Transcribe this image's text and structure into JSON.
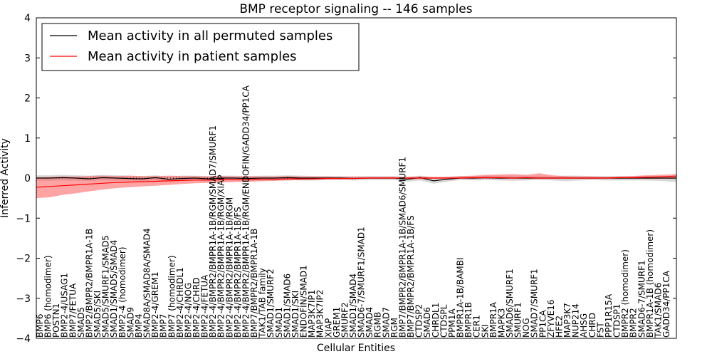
{
  "chart_data": {
    "type": "line",
    "title": "BMP receptor signaling -- 146 samples",
    "xlabel": "Cellular Entities",
    "ylabel": "Inferred Activity",
    "ylim": [
      -4,
      4
    ],
    "yticks": [
      -4,
      -3,
      -2,
      -1,
      0,
      1,
      2,
      3,
      4
    ],
    "xlim": [
      0,
      145
    ],
    "legend_position": "top-left",
    "colors": {
      "permuted_line": "#000000",
      "permuted_band": "#c8c8c8",
      "patient_line": "#ff0000",
      "patient_band": "#ff5a5a",
      "zero_line": "#000000"
    },
    "labels": [
      "BMP6",
      "BMP6 (homodimer)",
      "POSTN1",
      "BMP2-4/USAG1",
      "BMP7/FETUA",
      "SMAD5",
      "BMP2/BMPR2/BMPR1A-1B",
      "SMAD5/SKI",
      "SMAD5/SMURF1/SMAD5",
      "SMAD1/SMAD5/SMAD4",
      "BMP2-4 (homodimer)",
      "SMAD9",
      "BMP4",
      "SMAD8A/SMAD8A/SMAD4",
      "BMP2-4/GREM1",
      "BMP7",
      "BMP7 (homodimer)",
      "BMP2-4/CHRDL1",
      "BMP2-4/NOG",
      "BMP2-4/CHRD",
      "BMP2-4/FETUA",
      "BMP2-4/BMPR2/BMPR1A-1B/RGM/SMAD7/SMURF1",
      "BMP2-4/BMPR2/BMPR1A-1B/RGM/XIAP",
      "BMP2-4/BMPR2/BMPR1A-1B/RGM",
      "BMP2-4/BMPR2/BMPR1A-1B/FS",
      "BMP2-4/BMPR2/BMPR1A-1B/RGM/ENDOFIN/GADD34/PP1CA",
      "BMP7/BMPR2/BMPR1A-1B",
      "TAK1/TAB family",
      "SMAD1/SMURF2",
      "SMAD1",
      "SMAD1/SMAD6",
      "SMAD1/SKI",
      "ENDOFIN/SMAD1",
      "MAP3K7IP1",
      "MAP3K7IP2",
      "XIAP",
      "GREM1",
      "SMURF2",
      "SMAD1/SMAD4",
      "SMAD6-7/SMURF1/SMAD1",
      "SMAD4",
      "RGMB",
      "SMAD7",
      "RGM",
      "BMP7/BMPR2/BMPR1A-1B/SMAD6/SMURF1",
      "BMP7/BMPR2/BMPR1A-1B/FS",
      "CTDSP2",
      "SMAD6",
      "CHRDL1",
      "CTDSPL",
      "PPM1A",
      "BMPR1A-1B/BAMBI",
      "BMPR1B",
      "CER1",
      "SKI",
      "BMPR1A",
      "MAPK3",
      "SMAD6/SMURF1",
      "SMURF1",
      "NOG",
      "SMAD7/SMURF1",
      "PP1CA",
      "ZFYVE16",
      "HFE2",
      "MAP3K7",
      "NUP214",
      "AHSG",
      "CHRD",
      "FST",
      "PPP1R15A",
      "CTDSP1",
      "BMPR2 (homodimer)",
      "BMPR2",
      "SMAD6-7/SMURF1",
      "BMPR1A-1B (homodimer)",
      "TAK1/SMAD6",
      "GADD34/PP1CA"
    ],
    "series": [
      {
        "name": "Mean activity in all permuted samples",
        "x": [
          0,
          3,
          6,
          9,
          12,
          15,
          18,
          21,
          24,
          27,
          30,
          33,
          36,
          39,
          42,
          45,
          48,
          51,
          54,
          57,
          60,
          63,
          66,
          69,
          72,
          75,
          78,
          81,
          84,
          87,
          90,
          93,
          96,
          99,
          102,
          105,
          108,
          111,
          114,
          117,
          120,
          123,
          126,
          129,
          132,
          135,
          138,
          141,
          145
        ],
        "values": [
          0,
          0,
          0.01,
          0,
          -0.02,
          0.01,
          0,
          -0.01,
          -0.02,
          0.01,
          -0.03,
          -0.01,
          0,
          -0.02,
          0,
          0,
          -0.01,
          0,
          0,
          0.01,
          0,
          0,
          0,
          0,
          -0.01,
          0,
          0,
          0,
          -0.03,
          0.01,
          -0.07,
          -0.03,
          0,
          0,
          0.01,
          0,
          0,
          0,
          0,
          0,
          0,
          0,
          0,
          0,
          0,
          0,
          0,
          0,
          0
        ],
        "band_low": [
          -0.07,
          -0.07,
          -0.06,
          -0.07,
          -0.08,
          -0.06,
          -0.07,
          -0.07,
          -0.08,
          -0.06,
          -0.09,
          -0.07,
          -0.06,
          -0.08,
          -0.06,
          -0.06,
          -0.07,
          -0.06,
          -0.06,
          -0.05,
          -0.06,
          -0.06,
          -0.05,
          -0.05,
          -0.06,
          -0.05,
          -0.05,
          -0.05,
          -0.09,
          -0.06,
          -0.14,
          -0.09,
          -0.05,
          -0.06,
          -0.05,
          -0.06,
          -0.07,
          -0.06,
          -0.05,
          -0.06,
          -0.08,
          -0.06,
          -0.05,
          -0.06,
          -0.06,
          -0.06,
          -0.06,
          -0.07,
          -0.1
        ],
        "band_high": [
          0.07,
          0.07,
          0.08,
          0.07,
          0.06,
          0.08,
          0.07,
          0.06,
          0.05,
          0.07,
          0.04,
          0.06,
          0.06,
          0.05,
          0.06,
          0.06,
          0.05,
          0.06,
          0.06,
          0.07,
          0.06,
          0.05,
          0.05,
          0.05,
          0.04,
          0.05,
          0.05,
          0.05,
          0.03,
          0.06,
          0.02,
          0.03,
          0.05,
          0.05,
          0.06,
          0.06,
          0.06,
          0.06,
          0.05,
          0.05,
          0.06,
          0.06,
          0.05,
          0.05,
          0.05,
          0.05,
          0.05,
          0.05,
          0.05
        ]
      },
      {
        "name": "Mean activity in patient samples",
        "x": [
          0,
          3,
          6,
          9,
          12,
          15,
          18,
          21,
          24,
          27,
          30,
          33,
          36,
          39,
          42,
          45,
          48,
          51,
          54,
          57,
          60,
          63,
          66,
          69,
          72,
          75,
          78,
          81,
          84,
          87,
          90,
          93,
          96,
          99,
          102,
          105,
          108,
          111,
          114,
          117,
          120,
          123,
          126,
          129,
          132,
          135,
          138,
          141,
          145
        ],
        "values": [
          -0.23,
          -0.21,
          -0.19,
          -0.17,
          -0.15,
          -0.13,
          -0.11,
          -0.1,
          -0.09,
          -0.08,
          -0.07,
          -0.06,
          -0.05,
          -0.05,
          -0.04,
          -0.04,
          -0.04,
          -0.03,
          -0.03,
          -0.02,
          -0.02,
          -0.02,
          -0.01,
          -0.01,
          -0.01,
          0,
          0,
          0,
          0,
          0,
          0,
          0,
          0,
          0.01,
          0.01,
          0.01,
          0,
          0.01,
          0,
          0,
          0,
          0,
          0,
          0,
          0.01,
          0.01,
          0.02,
          0.03,
          0.05
        ],
        "band_low": [
          -0.5,
          -0.48,
          -0.42,
          -0.38,
          -0.33,
          -0.29,
          -0.25,
          -0.23,
          -0.21,
          -0.19,
          -0.17,
          -0.15,
          -0.13,
          -0.12,
          -0.11,
          -0.1,
          -0.09,
          -0.08,
          -0.07,
          -0.06,
          -0.05,
          -0.04,
          -0.03,
          -0.03,
          -0.02,
          -0.02,
          -0.02,
          -0.02,
          -0.02,
          -0.03,
          -0.02,
          -0.02,
          -0.02,
          -0.02,
          -0.02,
          -0.02,
          -0.02,
          -0.02,
          -0.02,
          -0.02,
          -0.02,
          -0.02,
          -0.02,
          -0.02,
          -0.02,
          -0.02,
          -0.02,
          -0.02,
          -0.02
        ],
        "band_high": [
          0.02,
          0.03,
          0.04,
          0.04,
          0.05,
          0.06,
          0.05,
          0.06,
          0.05,
          0.05,
          0.06,
          0.05,
          0.05,
          0.04,
          0.05,
          0.04,
          0.05,
          0.04,
          0.04,
          0.05,
          0.04,
          0.04,
          0.04,
          0.03,
          0.04,
          0.03,
          0.03,
          0.03,
          0.03,
          0.04,
          0.03,
          0.03,
          0.05,
          0.06,
          0.08,
          0.09,
          0.1,
          0.08,
          0.12,
          0.07,
          0.05,
          0.04,
          0.04,
          0.03,
          0.04,
          0.05,
          0.07,
          0.08,
          0.1
        ]
      }
    ]
  }
}
